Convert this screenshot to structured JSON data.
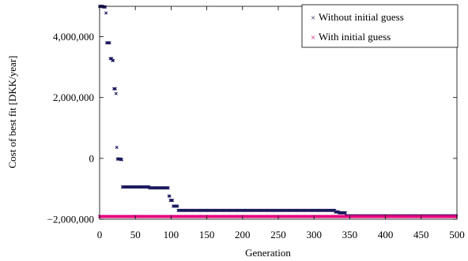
{
  "chart_data": {
    "type": "scatter",
    "xlabel": "Generation",
    "ylabel": "Cost of best fit [DKK/year]",
    "xlim": [
      0,
      500
    ],
    "ylim": [
      -2000000,
      5000000
    ],
    "x_ticks": [
      0,
      50,
      100,
      150,
      200,
      250,
      300,
      350,
      400,
      450,
      500
    ],
    "x_tick_labels": [
      "0",
      "50",
      "100",
      "150",
      "200",
      "250",
      "300",
      "350",
      "400",
      "450",
      "500"
    ],
    "y_ticks": [
      -2000000,
      0,
      2000000,
      4000000
    ],
    "y_tick_labels": [
      "−2,000,000",
      "0",
      "2,000,000",
      "4,000,000"
    ],
    "legend_position": "top-right",
    "grid": false,
    "marker": "x",
    "series": [
      {
        "name": "Without initial guess",
        "color": "#1c1a5e",
        "segments": [
          {
            "x_from": 0,
            "x_to": 5,
            "y": 5000000
          },
          {
            "x_from": 5,
            "x_to": 9,
            "y": 4980000
          },
          {
            "x_from": 9,
            "x_to": 10,
            "y": 4780000
          },
          {
            "x_from": 10,
            "x_to": 15,
            "y": 3800000
          },
          {
            "x_from": 15,
            "x_to": 18,
            "y": 3280000
          },
          {
            "x_from": 18,
            "x_to": 20,
            "y": 3220000
          },
          {
            "x_from": 20,
            "x_to": 23,
            "y": 2290000
          },
          {
            "x_from": 23,
            "x_to": 24,
            "y": 2130000
          },
          {
            "x_from": 24,
            "x_to": 25,
            "y": 360000
          },
          {
            "x_from": 25,
            "x_to": 30,
            "y": -20000
          },
          {
            "x_from": 30,
            "x_to": 32,
            "y": -40000
          },
          {
            "x_from": 32,
            "x_to": 70,
            "y": -940000
          },
          {
            "x_from": 70,
            "x_to": 97,
            "y": -970000
          },
          {
            "x_from": 97,
            "x_to": 99,
            "y": -1240000
          },
          {
            "x_from": 99,
            "x_to": 103,
            "y": -1380000
          },
          {
            "x_from": 103,
            "x_to": 110,
            "y": -1570000
          },
          {
            "x_from": 110,
            "x_to": 330,
            "y": -1710000
          },
          {
            "x_from": 330,
            "x_to": 335,
            "y": -1760000
          },
          {
            "x_from": 335,
            "x_to": 345,
            "y": -1790000
          },
          {
            "x_from": 345,
            "x_to": 500,
            "y": -1890000
          }
        ]
      },
      {
        "name": "With initial guess",
        "color": "#e6007e",
        "segments": [
          {
            "x_from": 0,
            "x_to": 500,
            "y": -1910000
          }
        ]
      }
    ]
  }
}
